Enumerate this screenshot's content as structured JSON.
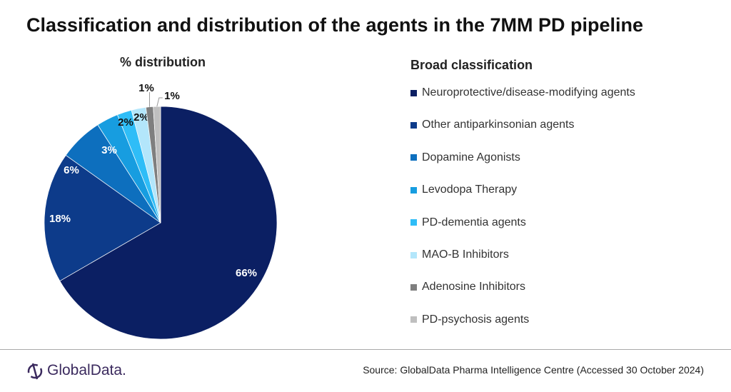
{
  "title": "Classification and distribution of the agents in the 7MM PD pipeline",
  "chart_data": {
    "type": "pie",
    "title": "% distribution",
    "legend_title": "Broad classification",
    "legend_position": "right",
    "categories": [
      "Neuroprotective/disease-modifying agents",
      "Other antiparkinsonian agents",
      "Dopamine Agonists",
      "Levodopa Therapy",
      "PD-dementia agents",
      "MAO-B Inhibitors",
      "Adenosine Inhibitors",
      "PD-psychosis agents"
    ],
    "values": [
      66,
      18,
      6,
      3,
      2,
      2,
      1,
      1
    ],
    "labels": [
      "66%",
      "18%",
      "6%",
      "3%",
      "2%",
      "2%",
      "1%",
      "1%"
    ],
    "colors": [
      "#0b1f63",
      "#0d3b8a",
      "#0d6fbe",
      "#179de0",
      "#2fbdf7",
      "#b3e6fb",
      "#7f7f7f",
      "#bfbfbf"
    ]
  },
  "logo": "GlobalData.",
  "source": "Source: GlobalData Pharma Intelligence Centre (Accessed 30 October 2024)"
}
